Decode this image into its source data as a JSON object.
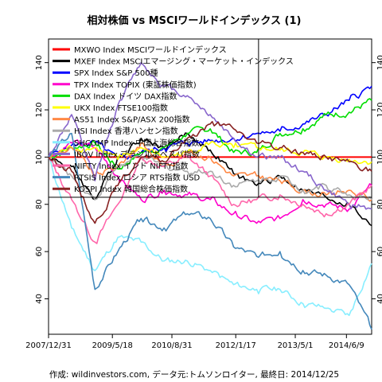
{
  "chart_data": {
    "type": "line",
    "title": "相対株価 vs MSCIワールドインデックス (1)",
    "caption": "作成: wildinvestors.com, データ元:トムソンロイター, 最終日: 2014/12/25",
    "xlabel": "",
    "ylabel": "",
    "xlim": [
      "2007-12-31",
      "2014-12-25"
    ],
    "ylim": [
      25,
      150
    ],
    "x_ticks": [
      "2007/12/31",
      "2009/5/18",
      "2010/8/31",
      "2012/1/17",
      "2013/5/1",
      "2014/6/9"
    ],
    "x_tick_dates": [
      "2007-12-31",
      "2009-05-18",
      "2010-08-31",
      "2012-01-17",
      "2013-05-01",
      "2014-06-09"
    ],
    "y_ticks": [
      40,
      60,
      80,
      100,
      120,
      140
    ],
    "grid": false,
    "legend_position": "top-left",
    "reference_lines": {
      "horizontal": 83,
      "vertical_date": "2012-07-15"
    },
    "x": [
      "2007-12-31",
      "2008-06-30",
      "2008-12-31",
      "2009-06-30",
      "2009-12-31",
      "2010-06-30",
      "2010-12-31",
      "2011-06-30",
      "2011-12-31",
      "2012-06-30",
      "2012-12-31",
      "2013-06-30",
      "2013-12-31",
      "2014-06-30",
      "2014-12-25"
    ],
    "series": [
      {
        "name": "MXWO Index MSCIワールドインデックス",
        "color": "#ff0000",
        "values": [
          100,
          100,
          100,
          100,
          100,
          100,
          100,
          100,
          100,
          100,
          100,
          100,
          100,
          100,
          100
        ]
      },
      {
        "name": "MXEF Index MSCIエマージング・マーケット・インデックス",
        "color": "#000000",
        "values": [
          100,
          96,
          82,
          100,
          108,
          104,
          110,
          103,
          93,
          88,
          92,
          86,
          83,
          80,
          71
        ]
      },
      {
        "name": "SPX Index S&P 500種",
        "color": "#0000ff",
        "values": [
          100,
          105,
          106,
          99,
          102,
          104,
          106,
          107,
          108,
          110,
          111,
          114,
          118,
          124,
          130
        ]
      },
      {
        "name": "TPX Index TOPIX (東証株価指数)",
        "color": "#ff00cc",
        "values": [
          100,
          106,
          104,
          92,
          82,
          86,
          84,
          82,
          76,
          72,
          74,
          82,
          80,
          78,
          88
        ]
      },
      {
        "name": "DAX Index ドイツ DAX指数",
        "color": "#00dd00",
        "values": [
          100,
          104,
          106,
          95,
          102,
          104,
          110,
          112,
          102,
          102,
          110,
          112,
          118,
          119,
          124
        ]
      },
      {
        "name": "UKX Index FTSE100指数",
        "color": "#ffff00",
        "values": [
          100,
          104,
          104,
          99,
          104,
          100,
          102,
          106,
          104,
          104,
          103,
          102,
          100,
          99,
          98
        ]
      },
      {
        "name": "AS51 Index S&P/ASX 200指数",
        "color": "#ff8844",
        "values": [
          100,
          104,
          92,
          96,
          106,
          96,
          102,
          100,
          92,
          92,
          90,
          86,
          84,
          86,
          82
        ]
      },
      {
        "name": "HSI Index 香港ハンセン指数",
        "color": "#aaaaaa",
        "values": [
          100,
          92,
          82,
          96,
          100,
          96,
          94,
          94,
          88,
          90,
          92,
          86,
          88,
          84,
          82
        ]
      },
      {
        "name": "SHCOMP Index 中国上海総合指数",
        "color": "#88eeff",
        "values": [
          100,
          70,
          52,
          66,
          64,
          56,
          56,
          52,
          46,
          44,
          44,
          38,
          36,
          33,
          55
        ]
      },
      {
        "name": "IBOV Index ブラジルボベスパ指数",
        "color": "#8866cc",
        "values": [
          100,
          118,
          90,
          122,
          140,
          130,
          126,
          118,
          108,
          100,
          100,
          94,
          86,
          80,
          78
        ]
      },
      {
        "name": "NIFTY Index インド NIFTY指数",
        "color": "#ff66aa",
        "values": [
          100,
          82,
          64,
          80,
          100,
          96,
          100,
          92,
          80,
          82,
          84,
          80,
          76,
          80,
          88
        ]
      },
      {
        "name": "RTSIS Index ロシア RTS指数 USD",
        "color": "#4488bb",
        "values": [
          100,
          110,
          44,
          60,
          74,
          70,
          76,
          74,
          62,
          58,
          60,
          52,
          50,
          46,
          27
        ]
      },
      {
        "name": "KOSPI Index 韓国総合株価指数",
        "color": "#882222",
        "values": [
          100,
          94,
          72,
          88,
          100,
          98,
          108,
          114,
          112,
          106,
          104,
          102,
          100,
          98,
          94
        ]
      }
    ]
  }
}
